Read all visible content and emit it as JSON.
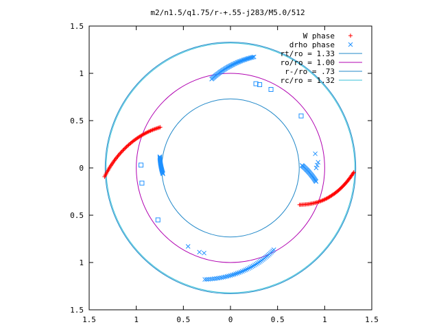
{
  "chart_data": {
    "type": "scatter",
    "title": "m2/n1.5/q1.75/r-+.55-j283/M5.0/512",
    "xlabel": "",
    "ylabel": "",
    "xlim": [
      -1.5,
      1.5
    ],
    "ylim": [
      -1.5,
      1.5
    ],
    "x_ticks": [
      -1.5,
      -1,
      -0.5,
      0,
      0.5,
      1,
      1.5
    ],
    "x_tick_labels": [
      "1.5",
      "1",
      "0.5",
      "0",
      "0.5",
      "1",
      "1.5"
    ],
    "y_ticks": [
      1.5,
      1,
      0.5,
      0,
      -0.5,
      -1,
      -1.5
    ],
    "y_tick_labels": [
      "1.5",
      "1",
      "0.5",
      "0",
      "0.5",
      "1",
      "1.5"
    ],
    "grid": false,
    "legend_position": "top-right",
    "series": [
      {
        "name": "W phase",
        "marker": "plus",
        "color": "#ff0000",
        "arcs": [
          {
            "theta_start_deg": 184,
            "r_start": 1.34,
            "theta_end_deg": 150,
            "r_end": 0.86,
            "r_peak": 1.08,
            "peak_at": 0.55,
            "n": 60
          },
          {
            "theta_start_deg": -2,
            "r_start": 1.31,
            "theta_end_deg": -28,
            "r_end": 0.83,
            "r_peak": 1.07,
            "peak_at": 0.6,
            "n": 60
          }
        ]
      },
      {
        "name": "drho phase",
        "marker": "x",
        "color": "#1e90ff",
        "arcs": [
          {
            "theta_start_deg": 78,
            "r_start": 1.2,
            "theta_end_deg": 102,
            "r_end": 0.96,
            "n": 45
          },
          {
            "theta_start_deg": 171,
            "r_start": 0.76,
            "theta_end_deg": 185,
            "r_end": 0.72,
            "n": 25
          },
          {
            "theta_start_deg": -62,
            "r_start": 0.98,
            "theta_end_deg": -103,
            "r_end": 1.21,
            "n": 45
          },
          {
            "theta_start_deg": 2,
            "r_start": 0.76,
            "theta_end_deg": -9,
            "r_end": 0.92,
            "n": 25
          }
        ],
        "points": [
          [
            0.27,
            0.89
          ],
          [
            0.31,
            0.88
          ],
          [
            0.43,
            0.83
          ],
          [
            0.75,
            0.55
          ],
          [
            -0.95,
            0.03
          ],
          [
            -0.94,
            -0.16
          ],
          [
            -0.77,
            -0.55
          ],
          [
            -0.45,
            -0.83
          ],
          [
            -0.33,
            -0.89
          ],
          [
            -0.28,
            -0.9
          ],
          [
            0.9,
            0.15
          ],
          [
            0.91,
            0.0
          ],
          [
            0.92,
            0.03
          ],
          [
            0.93,
            0.06
          ]
        ]
      },
      {
        "name": "rt/ro = 1.33",
        "type": "circle",
        "radius": 1.33,
        "color": "#1f87c8"
      },
      {
        "name": "ro/ro = 1.00",
        "type": "circle",
        "radius": 1.0,
        "color": "#b000b0"
      },
      {
        "name": "r-/ro = .73",
        "type": "circle",
        "radius": 0.73,
        "color": "#1f87c8"
      },
      {
        "name": "rc/ro = 1.32",
        "type": "circle",
        "radius": 1.32,
        "color": "#34c0d8"
      }
    ]
  }
}
